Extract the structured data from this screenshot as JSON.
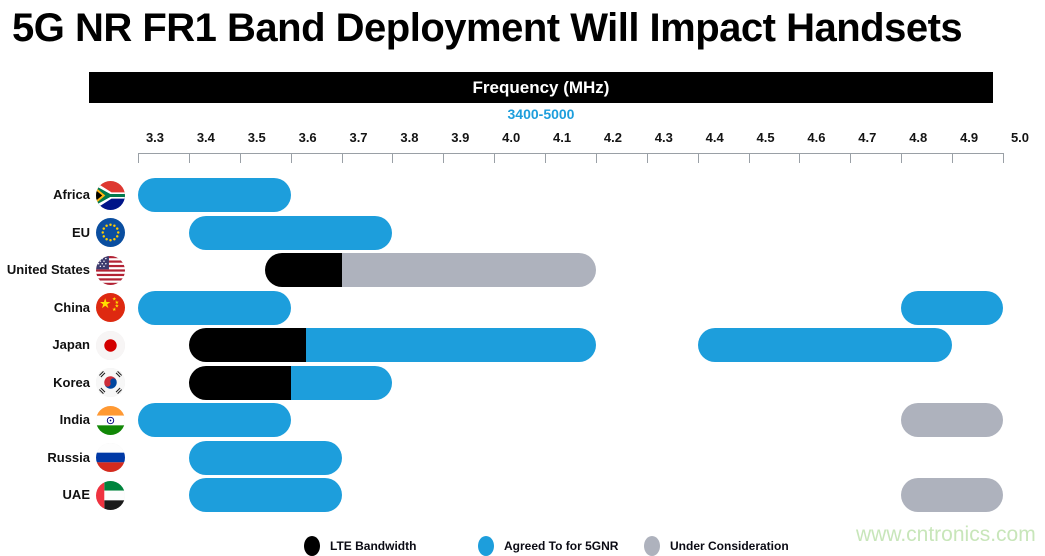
{
  "title": "5G NR FR1 Band Deployment Will Impact Handsets",
  "axis_header": "Frequency (MHz)",
  "axis_subtitle": "3400-5000",
  "watermark": "www.cntronics.com",
  "colors": {
    "lte": "#000000",
    "agreed": "#1d9edc",
    "consideration": "#aeb2bd",
    "subtitle_blue": "#1d9edc",
    "axis_line": "#9aa0a6"
  },
  "chart_data": {
    "type": "range_bar",
    "title": "5G NR FR1 Band Deployment Will Impact Handsets",
    "xlabel": "Frequency (MHz)",
    "x_axis": {
      "min": 3.3,
      "max": 5.0,
      "step": 0.1,
      "tick_format": "one_decimal"
    },
    "grid": false,
    "legend_position": "bottom",
    "rows": [
      {
        "country": "Africa",
        "flag": "south-africa",
        "bands": [
          {
            "start": 3.3,
            "end": 3.6,
            "status": "lte_no",
            "type": "agreed"
          }
        ]
      },
      {
        "country": "EU",
        "flag": "eu",
        "bands": [
          {
            "start": 3.4,
            "end": 3.8,
            "type": "agreed"
          }
        ]
      },
      {
        "country": "United States",
        "flag": "united-states",
        "bands": [
          {
            "start": 3.55,
            "end": 3.7,
            "type": "lte"
          },
          {
            "start": 3.7,
            "end": 4.2,
            "type": "consideration"
          }
        ]
      },
      {
        "country": "China",
        "flag": "china",
        "bands": [
          {
            "start": 3.3,
            "end": 3.6,
            "type": "agreed"
          },
          {
            "start": 4.8,
            "end": 5.0,
            "type": "agreed"
          }
        ]
      },
      {
        "country": "Japan",
        "flag": "japan",
        "bands": [
          {
            "start": 3.4,
            "end": 3.63,
            "type": "lte"
          },
          {
            "start": 3.63,
            "end": 4.2,
            "type": "agreed"
          },
          {
            "start": 4.4,
            "end": 4.9,
            "type": "agreed"
          }
        ]
      },
      {
        "country": "Korea",
        "flag": "south-korea",
        "bands": [
          {
            "start": 3.4,
            "end": 3.6,
            "type": "lte"
          },
          {
            "start": 3.6,
            "end": 3.8,
            "type": "agreed"
          }
        ]
      },
      {
        "country": "India",
        "flag": "india",
        "bands": [
          {
            "start": 3.3,
            "end": 3.6,
            "type": "agreed"
          },
          {
            "start": 4.8,
            "end": 5.0,
            "type": "consideration"
          }
        ]
      },
      {
        "country": "Russia",
        "flag": "russia",
        "bands": [
          {
            "start": 3.4,
            "end": 3.7,
            "type": "agreed"
          }
        ]
      },
      {
        "country": "UAE",
        "flag": "uae",
        "bands": [
          {
            "start": 3.4,
            "end": 3.7,
            "type": "agreed"
          },
          {
            "start": 4.8,
            "end": 5.0,
            "type": "consideration"
          }
        ]
      }
    ],
    "legend": [
      {
        "label": "LTE Bandwidth",
        "type": "lte"
      },
      {
        "label": "Agreed To for 5GNR",
        "type": "agreed"
      },
      {
        "label": "Under Consideration",
        "type": "consideration"
      }
    ]
  }
}
